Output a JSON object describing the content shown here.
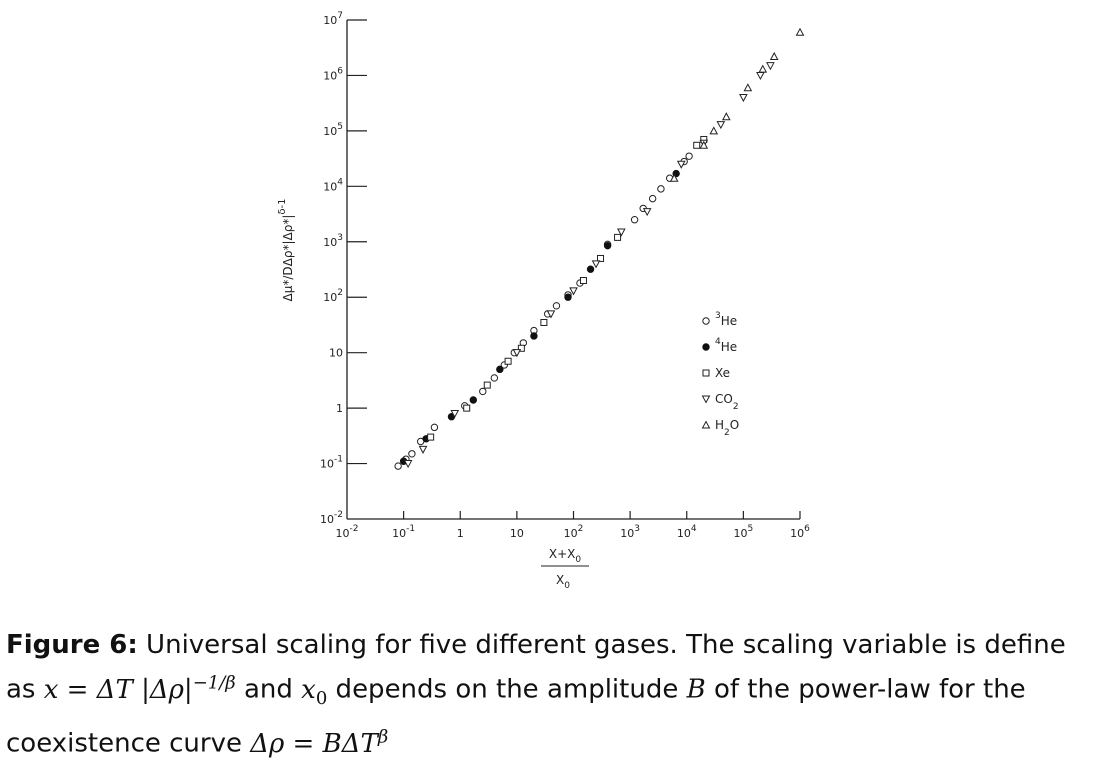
{
  "chart_data": {
    "type": "scatter",
    "x_scale": "log",
    "y_scale": "log",
    "xlim": [
      0.01,
      1000000
    ],
    "ylim": [
      0.01,
      10000000
    ],
    "x_tick_labels": [
      "10^-2",
      "10^-1",
      "1",
      "10",
      "10^2",
      "10^3",
      "10^4",
      "10^5",
      "10^6"
    ],
    "y_tick_labels": [
      "10^-2",
      "10^-1",
      "1",
      "10",
      "10^2",
      "10^3",
      "10^4",
      "10^5",
      "10^6",
      "10^7"
    ],
    "xlabel_numerator": "X+X0",
    "xlabel_denominator": "X0",
    "ylabel": "Δμ*/DΔρ*|Δρ*|^(δ-1)",
    "legend_position": "lower-right",
    "series": [
      {
        "name": "3He",
        "marker": "open-circle",
        "points": [
          [
            0.08,
            0.09
          ],
          [
            0.11,
            0.12
          ],
          [
            0.14,
            0.15
          ],
          [
            0.2,
            0.25
          ],
          [
            0.35,
            0.45
          ],
          [
            1.2,
            1.1
          ],
          [
            2.5,
            2.0
          ],
          [
            4,
            3.5
          ],
          [
            6,
            6
          ],
          [
            9,
            10
          ],
          [
            13,
            15
          ],
          [
            20,
            25
          ],
          [
            35,
            50
          ],
          [
            50,
            70
          ],
          [
            80,
            110
          ],
          [
            130,
            180
          ],
          [
            400,
            900
          ],
          [
            1200,
            2500
          ],
          [
            1700,
            4000
          ],
          [
            2500,
            6000
          ],
          [
            3500,
            9000
          ],
          [
            5000,
            14000
          ],
          [
            9000,
            28000
          ],
          [
            11000,
            35000
          ]
        ]
      },
      {
        "name": "4He",
        "marker": "filled-circle",
        "points": [
          [
            0.1,
            0.11
          ],
          [
            0.25,
            0.28
          ],
          [
            0.7,
            0.7
          ],
          [
            1.7,
            1.4
          ],
          [
            5,
            5
          ],
          [
            20,
            20
          ],
          [
            80,
            100
          ],
          [
            200,
            320
          ],
          [
            400,
            850
          ],
          [
            6500,
            17000
          ]
        ]
      },
      {
        "name": "Xe",
        "marker": "open-square",
        "points": [
          [
            0.3,
            0.3
          ],
          [
            1.3,
            1.0
          ],
          [
            3,
            2.6
          ],
          [
            7,
            7
          ],
          [
            12,
            12
          ],
          [
            30,
            35
          ],
          [
            150,
            200
          ],
          [
            300,
            500
          ],
          [
            600,
            1200
          ],
          [
            15000,
            55000
          ],
          [
            20000,
            70000
          ]
        ]
      },
      {
        "name": "CO2",
        "marker": "down-triangle",
        "points": [
          [
            0.12,
            0.1
          ],
          [
            0.22,
            0.18
          ],
          [
            0.8,
            0.8
          ],
          [
            10,
            10
          ],
          [
            40,
            50
          ],
          [
            100,
            130
          ],
          [
            250,
            400
          ],
          [
            700,
            1500
          ],
          [
            2000,
            3500
          ],
          [
            8000,
            25000
          ],
          [
            20000,
            60000
          ],
          [
            40000,
            130000
          ],
          [
            100000,
            400000
          ],
          [
            200000,
            1000000
          ],
          [
            300000,
            1500000
          ]
        ]
      },
      {
        "name": "H2O",
        "marker": "up-triangle",
        "points": [
          [
            6000,
            14000
          ],
          [
            20000,
            55000
          ],
          [
            30000,
            100000
          ],
          [
            50000,
            180000
          ],
          [
            120000,
            600000
          ],
          [
            220000,
            1300000
          ],
          [
            350000,
            2200000
          ],
          [
            1000000,
            6000000
          ]
        ]
      }
    ],
    "legend": [
      {
        "key": "3He",
        "marker": "open-circle",
        "sup": "3",
        "base": "He",
        "sub": ""
      },
      {
        "key": "4He",
        "marker": "filled-circle",
        "sup": "4",
        "base": "He",
        "sub": ""
      },
      {
        "key": "Xe",
        "marker": "open-square",
        "sup": "",
        "base": "Xe",
        "sub": ""
      },
      {
        "key": "CO2",
        "marker": "down-triangle",
        "sup": "",
        "base": "CO",
        "sub": "2"
      },
      {
        "key": "H2O",
        "marker": "up-triangle",
        "sup": "",
        "base": "H",
        "sub": "2",
        "tail": "O"
      }
    ]
  },
  "caption": {
    "label": "Figure 6:",
    "text_1": " Universal scaling for five different gases. The scaling variable is define as ",
    "math_1": "x = ΔT |Δρ|",
    "math_1_exp": "−1/β",
    "text_2": " and ",
    "math_2": "x",
    "math_2_sub": "0",
    "text_3": " depends on the amplitude ",
    "math_3": "B",
    "text_4": " of the power-law for the coexistence curve ",
    "math_4": "Δρ = BΔT",
    "math_4_exp": "β"
  }
}
